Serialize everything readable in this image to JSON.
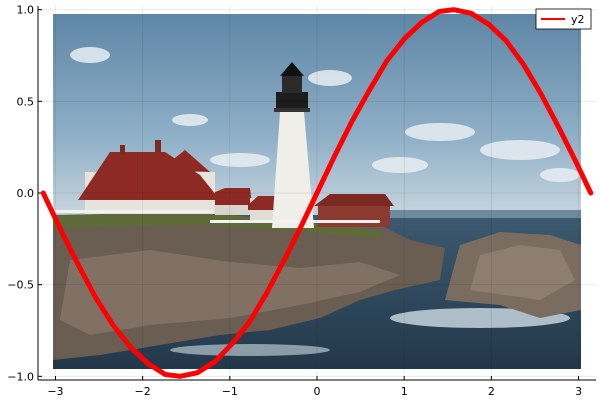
{
  "chart_data": {
    "type": "line",
    "title": "",
    "xlabel": "",
    "ylabel": "",
    "xlim": [
      -3.2,
      3.2
    ],
    "ylim": [
      -1.02,
      1.02
    ],
    "grid": true,
    "legend_position": "top-right",
    "background_image": "photo-of-lighthouse-on-rocky-coast",
    "x_ticks": [
      {
        "value": -3,
        "label": "−3"
      },
      {
        "value": -2,
        "label": "−2"
      },
      {
        "value": -1,
        "label": "−1"
      },
      {
        "value": 0,
        "label": "0"
      },
      {
        "value": 1,
        "label": "1"
      },
      {
        "value": 2,
        "label": "2"
      },
      {
        "value": 3,
        "label": "3"
      }
    ],
    "y_ticks": [
      {
        "value": -1.0,
        "label": "−1.0"
      },
      {
        "value": -0.5,
        "label": "−0.5"
      },
      {
        "value": 0.0,
        "label": "0.0"
      },
      {
        "value": 0.5,
        "label": "0.5"
      },
      {
        "value": 1.0,
        "label": "1.0"
      }
    ],
    "series": [
      {
        "name": "y2",
        "color": "#ff0000",
        "x": [
          -3.14,
          -2.94,
          -2.74,
          -2.54,
          -2.34,
          -2.14,
          -1.94,
          -1.74,
          -1.57,
          -1.37,
          -1.17,
          -0.97,
          -0.77,
          -0.57,
          -0.37,
          -0.17,
          0.0,
          0.2,
          0.4,
          0.6,
          0.8,
          1.0,
          1.2,
          1.4,
          1.57,
          1.77,
          1.97,
          2.17,
          2.37,
          2.57,
          2.77,
          2.97,
          3.14
        ],
        "y": [
          0.0,
          -0.2,
          -0.39,
          -0.57,
          -0.72,
          -0.84,
          -0.93,
          -0.99,
          -1.0,
          -0.98,
          -0.92,
          -0.82,
          -0.7,
          -0.54,
          -0.36,
          -0.17,
          0.0,
          0.2,
          0.39,
          0.56,
          0.72,
          0.84,
          0.93,
          0.99,
          1.0,
          0.98,
          0.92,
          0.83,
          0.7,
          0.54,
          0.36,
          0.17,
          0.0
        ]
      }
    ]
  }
}
